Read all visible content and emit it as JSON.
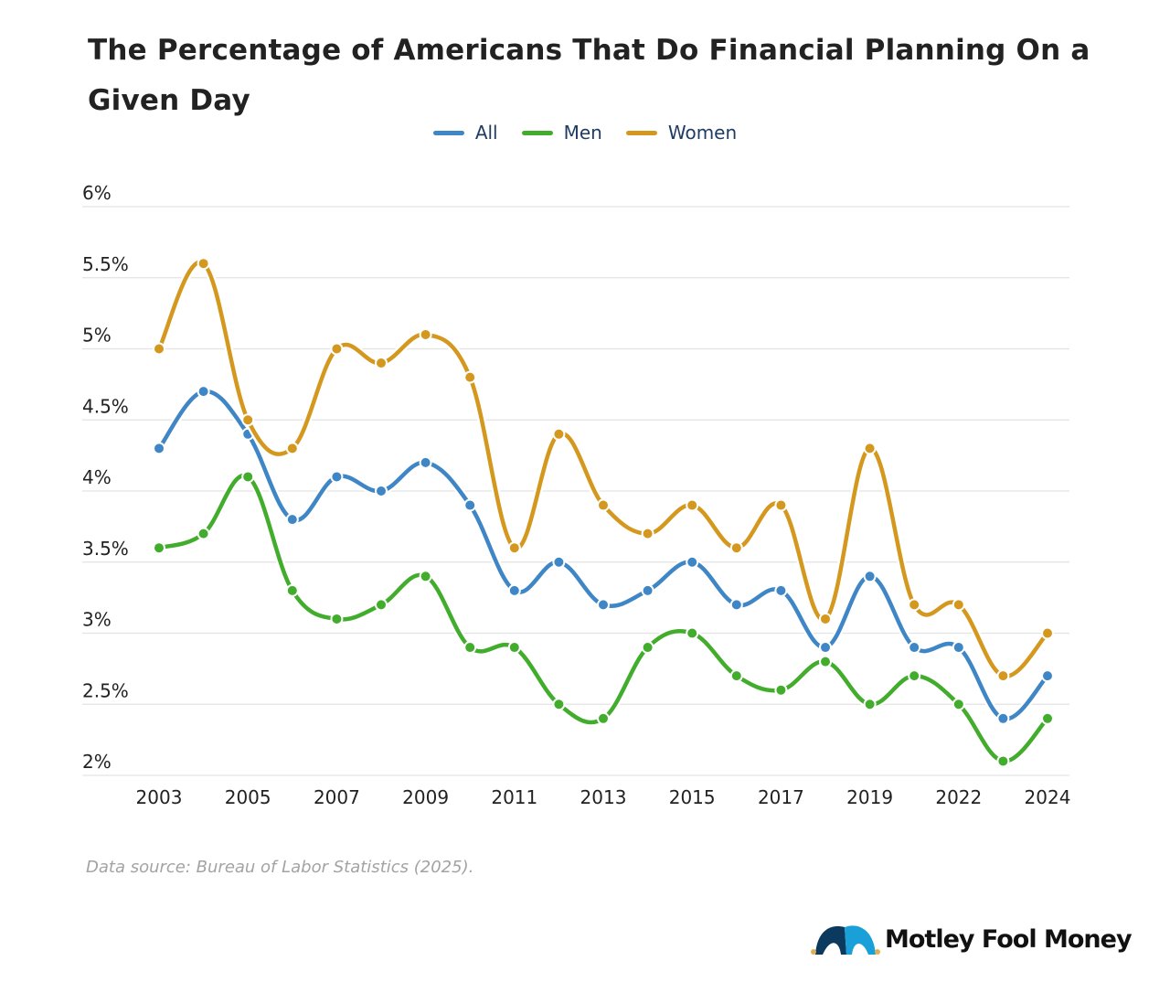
{
  "chart_data": {
    "type": "line",
    "title": "The Percentage of Americans That Do Financial Planning On a Given Day",
    "xlabel": "",
    "ylabel": "",
    "x": [
      2003,
      2004,
      2005,
      2006,
      2007,
      2008,
      2009,
      2010,
      2011,
      2012,
      2013,
      2014,
      2015,
      2016,
      2017,
      2018,
      2019,
      2021,
      2022,
      2023,
      2024
    ],
    "x_tick_labels": [
      "2003",
      "2005",
      "2007",
      "2009",
      "2011",
      "2013",
      "2015",
      "2017",
      "2019",
      "2022",
      "2024"
    ],
    "y_tick_values": [
      2,
      2.5,
      3,
      3.5,
      4,
      4.5,
      5,
      5.5,
      6
    ],
    "y_tick_labels": [
      "2%",
      "2.5%",
      "3%",
      "3.5%",
      "4%",
      "4.5%",
      "5%",
      "5.5%",
      "6%"
    ],
    "ylim": [
      2,
      6
    ],
    "grid": true,
    "legend_position": "top-center",
    "series": [
      {
        "name": "All",
        "color": "#3f86c6",
        "values": [
          4.3,
          4.7,
          4.4,
          3.8,
          4.1,
          4.0,
          4.2,
          3.9,
          3.3,
          3.5,
          3.2,
          3.3,
          3.5,
          3.2,
          3.3,
          2.9,
          3.4,
          2.9,
          2.9,
          2.4,
          2.7
        ]
      },
      {
        "name": "Men",
        "color": "#42ad2c",
        "values": [
          3.6,
          3.7,
          4.1,
          3.3,
          3.1,
          3.2,
          3.4,
          2.9,
          2.9,
          2.5,
          2.4,
          2.9,
          3.0,
          2.7,
          2.6,
          2.8,
          2.5,
          2.7,
          2.5,
          2.1,
          2.4
        ]
      },
      {
        "name": "Women",
        "color": "#d4981f",
        "values": [
          5.0,
          5.6,
          4.5,
          4.3,
          5.0,
          4.9,
          5.1,
          4.8,
          3.6,
          4.4,
          3.9,
          3.7,
          3.9,
          3.6,
          3.9,
          3.1,
          4.3,
          3.2,
          3.2,
          2.7,
          3.0
        ]
      }
    ]
  },
  "source": "Data source: Bureau of Labor Statistics (2025).",
  "logo": {
    "text": "Motley Fool Money",
    "colors": [
      "#0b3a5e",
      "#1aa0d8",
      "#e0b050"
    ]
  }
}
